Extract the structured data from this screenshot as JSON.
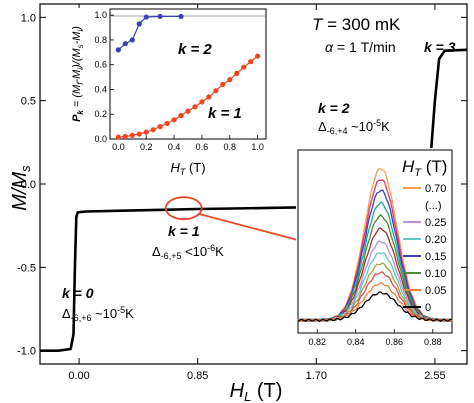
{
  "chart_data": [
    {
      "id": "main",
      "type": "line",
      "ylabel": "M/M",
      "ylabel_sub": "s",
      "xlabel": "H",
      "xlabel_sub": "L",
      "xlabel_unit": " (T)",
      "xlim": [
        -0.28,
        2.78
      ],
      "ylim": [
        -1.08,
        1.08
      ],
      "xticks": [
        0.0,
        0.85,
        1.7,
        2.55
      ],
      "xtick_labels": [
        "0.00",
        "0.85",
        "1.70",
        "2.55"
      ],
      "yticks": [
        -1.0,
        -0.5,
        0.0,
        0.5,
        1.0
      ],
      "ytick_labels": [
        "-1.0",
        "-0.5",
        "0.0",
        "0.5",
        "1.0"
      ],
      "series": [
        {
          "color": "#000000",
          "points": [
            [
              -0.28,
              -1.0
            ],
            [
              -0.15,
              -1.0
            ],
            [
              -0.06,
              -0.99
            ],
            [
              -0.04,
              -0.9
            ],
            [
              -0.03,
              -0.5
            ],
            [
              -0.02,
              -0.2
            ],
            [
              -0.01,
              -0.17
            ],
            [
              0.05,
              -0.165
            ],
            [
              0.3,
              -0.16
            ],
            [
              0.6,
              -0.155
            ],
            [
              0.85,
              -0.15
            ],
            [
              1.1,
              -0.147
            ],
            [
              1.4,
              -0.143
            ],
            [
              1.62,
              -0.14
            ],
            [
              1.66,
              -0.12
            ],
            [
              1.69,
              0.0
            ],
            [
              1.71,
              0.1
            ],
            [
              1.74,
              0.14
            ],
            [
              1.9,
              0.145
            ],
            [
              2.2,
              0.15
            ],
            [
              2.45,
              0.155
            ],
            [
              2.52,
              0.17
            ],
            [
              2.55,
              0.5
            ],
            [
              2.58,
              0.75
            ],
            [
              2.62,
              0.8
            ],
            [
              2.78,
              0.805
            ]
          ]
        }
      ],
      "annotations": {
        "temperature": {
          "prefix": "T",
          "value": " = 300 mK"
        },
        "rate": {
          "prefix": "α",
          "value": " = 1 T/min"
        },
        "k0": {
          "label": "k = 0",
          "delta_sub": "-6,+6",
          "delta_val": " ~10",
          "delta_exp": "-5",
          "delta_unit": "K"
        },
        "k1": {
          "label": "k = 1",
          "delta_sub": "-6,+5",
          "delta_val": " <10",
          "delta_exp": "-6",
          "delta_unit": "K"
        },
        "k2": {
          "label": "k = 2",
          "delta_sub": "-6,+4",
          "delta_val": " ~10",
          "delta_exp": "-5",
          "delta_unit": "K"
        },
        "k3": {
          "label": "k = 3"
        }
      },
      "highlight": {
        "x": 0.75,
        "y": -0.145,
        "color": "#e84a2a"
      }
    },
    {
      "id": "inset_pk",
      "type": "line",
      "ylabel": "P = (M -M )/(M -M )",
      "ylabel_parts": [
        "P",
        "k",
        " = (M",
        "f",
        "-M",
        "i",
        ")/(M",
        "s",
        "-M",
        "i",
        ")"
      ],
      "xlabel": "H",
      "xlabel_sub": "T",
      "xlabel_unit": " (T)",
      "xlim": [
        -0.06,
        1.06
      ],
      "ylim": [
        0.0,
        1.05
      ],
      "xticks": [
        0.0,
        0.2,
        0.4,
        0.6,
        0.8,
        1.0
      ],
      "xtick_labels": [
        "0.0",
        "0.2",
        "0.4",
        "0.6",
        "0.8",
        "1.0"
      ],
      "yticks": [
        0.0,
        0.2,
        0.4,
        0.6,
        0.8,
        1.0
      ],
      "ytick_labels": [
        "0.0",
        "0.2",
        "0.4",
        "0.6",
        "0.8",
        "1.0"
      ],
      "series": [
        {
          "name": "k = 2",
          "color": "#3a3fb8",
          "x": [
            0.0,
            0.05,
            0.1,
            0.15,
            0.2,
            0.3,
            0.45
          ],
          "y": [
            0.72,
            0.77,
            0.8,
            0.93,
            0.985,
            0.99,
            0.99
          ]
        },
        {
          "name": "k = 1",
          "color": "#ee4422",
          "x": [
            0.0,
            0.05,
            0.1,
            0.15,
            0.2,
            0.25,
            0.3,
            0.35,
            0.4,
            0.45,
            0.5,
            0.55,
            0.6,
            0.65,
            0.7,
            0.75,
            0.8,
            0.85,
            0.9,
            0.95,
            1.0
          ],
          "y": [
            0.015,
            0.02,
            0.03,
            0.04,
            0.055,
            0.075,
            0.1,
            0.125,
            0.155,
            0.19,
            0.225,
            0.26,
            0.3,
            0.34,
            0.39,
            0.44,
            0.48,
            0.53,
            0.58,
            0.625,
            0.67
          ]
        }
      ]
    },
    {
      "id": "inset_peaks",
      "type": "line",
      "xlim": [
        0.81,
        0.89
      ],
      "ylim": [
        0.0,
        1.0
      ],
      "xticks": [
        0.82,
        0.84,
        0.86,
        0.88
      ],
      "xtick_labels": [
        "0.82",
        "0.84",
        "0.86",
        "0.88"
      ],
      "legend_title": "H",
      "legend_title_sub": "T",
      "legend_title_unit": " (T)",
      "legend": [
        "0.70",
        "(...)",
        "0.25",
        "0.20",
        "0.15",
        "0.10",
        "0.05",
        "0"
      ],
      "legend_colors": [
        "#f5a050",
        "",
        "#b890d8",
        "#60c8c0",
        "#3a3fb8",
        "#4a8a30",
        "#f08040",
        "#000000"
      ],
      "center": 0.853,
      "width": 0.0085,
      "curves": [
        {
          "color": "#f5a050",
          "amp": 0.9
        },
        {
          "color": "#e8306a",
          "amp": 0.84
        },
        {
          "color": "#3a3fb8",
          "amp": 0.78
        },
        {
          "color": "#20a0a0",
          "amp": 0.71
        },
        {
          "color": "#4a8a30",
          "amp": 0.64
        },
        {
          "color": "#a03030",
          "amp": 0.57
        },
        {
          "color": "#b890d8",
          "amp": 0.5
        },
        {
          "color": "#60c8c0",
          "amp": 0.44
        },
        {
          "color": "#a8a040",
          "amp": 0.38
        },
        {
          "color": "#d05050",
          "amp": 0.33
        },
        {
          "color": "#f08040",
          "amp": 0.27
        },
        {
          "color": "#000000",
          "amp": 0.22
        }
      ]
    }
  ]
}
